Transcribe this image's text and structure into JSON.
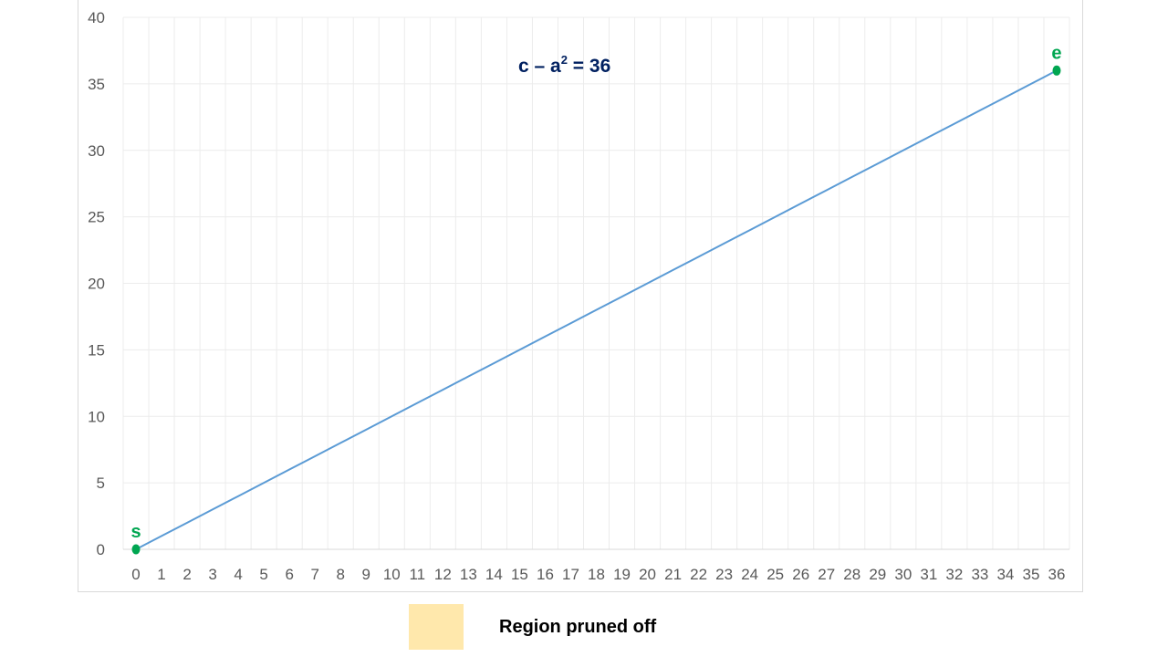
{
  "chart_data": {
    "type": "line",
    "title_main": "c – a",
    "title_sup": "2",
    "title_rest": " = 36",
    "x": [
      0,
      1,
      2,
      3,
      4,
      5,
      6,
      7,
      8,
      9,
      10,
      11,
      12,
      13,
      14,
      15,
      16,
      17,
      18,
      19,
      20,
      21,
      22,
      23,
      24,
      25,
      26,
      27,
      28,
      29,
      30,
      31,
      32,
      33,
      34,
      35,
      36
    ],
    "series": [
      {
        "values": [
          0,
          1,
          2,
          3,
          4,
          5,
          6,
          7,
          8,
          9,
          10,
          11,
          12,
          13,
          14,
          15,
          16,
          17,
          18,
          19,
          20,
          21,
          22,
          23,
          24,
          25,
          26,
          27,
          28,
          29,
          30,
          31,
          32,
          33,
          34,
          35,
          36
        ]
      }
    ],
    "xlim": [
      0,
      36
    ],
    "ylim": [
      0,
      40
    ],
    "y_ticks": [
      0,
      5,
      10,
      15,
      20,
      25,
      30,
      35,
      40
    ],
    "x_ticks": [
      0,
      1,
      2,
      3,
      4,
      5,
      6,
      7,
      8,
      9,
      10,
      11,
      12,
      13,
      14,
      15,
      16,
      17,
      18,
      19,
      20,
      21,
      22,
      23,
      24,
      25,
      26,
      27,
      28,
      29,
      30,
      31,
      32,
      33,
      34,
      35,
      36
    ],
    "grid": true,
    "annotations": [
      {
        "label": "s",
        "x": 0,
        "y": 0
      },
      {
        "label": "e",
        "x": 36,
        "y": 36
      }
    ],
    "legend": {
      "label": "Region pruned off",
      "placement": "bottom",
      "swatch_color": "#ffe8ac"
    },
    "colors": {
      "line": "#5b9bd5",
      "point": "#00a651",
      "title": "#002060",
      "grid": "#ececec"
    }
  }
}
